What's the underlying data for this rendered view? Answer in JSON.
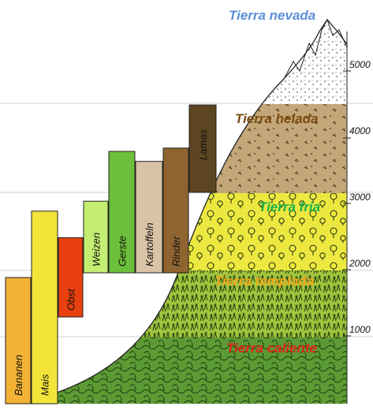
{
  "zones": [
    {
      "key": "nevada",
      "label": "Tierra nevada",
      "color": "#5b8fd6"
    },
    {
      "key": "helada",
      "label": "Tierra helada",
      "color": "#7a4a10"
    },
    {
      "key": "fria",
      "label": "Tierra fria",
      "color": "#18b04a"
    },
    {
      "key": "templada",
      "label": "Tierra templada",
      "color": "#f2a81c"
    },
    {
      "key": "caliente",
      "label": "Tierra caliente",
      "color": "#e0261c"
    }
  ],
  "altitudes": [
    "5000",
    "4000",
    "3000",
    "2000",
    "1000"
  ],
  "crops": [
    {
      "label": "Bananen",
      "color": "#f2b233",
      "max_altitude": 1900
    },
    {
      "label": "Mais",
      "color": "#f4e43a",
      "max_altitude": 2900
    },
    {
      "label": "Obst",
      "color": "#e8400e",
      "max_altitude": 2500
    },
    {
      "label": "Weizen",
      "color": "#c4ee72",
      "max_altitude": 3050
    },
    {
      "label": "Gerste",
      "color": "#6cbf3a",
      "max_altitude": 3800
    },
    {
      "label": "Kartoffeln",
      "color": "#d9c3a6",
      "max_altitude": 3650
    },
    {
      "label": "Rinder",
      "color": "#8f6430",
      "max_altitude": 3850
    },
    {
      "label": "Lamas",
      "color": "#5c4520",
      "max_altitude": 4500
    }
  ]
}
